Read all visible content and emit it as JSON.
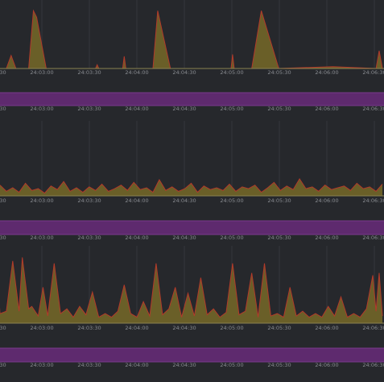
{
  "colors": {
    "background": "#26282c",
    "grid": "#34363b",
    "spike_fill": "#6e6228",
    "spike_stroke": "#b23a2a",
    "band": "#5e2a6e",
    "band_edge": "#7a3a8c",
    "baseline": "#8a8250",
    "tick_text": "#8a8d92"
  },
  "x_ticks": [
    "24:03:00",
    "24:03:30",
    "24:04:00",
    "24:04:30",
    "24:05:00",
    "24:05:30",
    "24:06:00",
    "24:06:30"
  ],
  "chart_data": [
    {
      "type": "area",
      "name": "panel-1-spikes",
      "x": [
        "24:02:38",
        "24:02:44",
        "24:02:47",
        "24:02:50",
        "24:02:58",
        "24:03:01",
        "24:03:03",
        "24:03:09",
        "24:03:40",
        "24:03:41",
        "24:03:42",
        "24:03:57",
        "24:03:58",
        "24:03:59",
        "24:04:16",
        "24:04:19",
        "24:04:27",
        "24:05:05",
        "24:05:06",
        "24:05:07",
        "24:05:18",
        "24:05:24",
        "24:05:35",
        "24:06:09",
        "24:06:36",
        "24:06:38",
        "24:06:40"
      ],
      "y": [
        0,
        0,
        14,
        0,
        0,
        62,
        55,
        0,
        0,
        4,
        0,
        0,
        13,
        0,
        0,
        62,
        0,
        0,
        15,
        0,
        0,
        62,
        0,
        2,
        0,
        19,
        0
      ],
      "xlim": [
        "24:02:38",
        "24:06:40"
      ],
      "ylim": [
        0,
        70
      ]
    },
    {
      "type": "band",
      "name": "panel-2-band",
      "x": [
        "24:02:38",
        "24:06:40"
      ],
      "y": [
        1,
        1
      ],
      "ylim": [
        0,
        1
      ]
    },
    {
      "type": "area",
      "name": "panel-3-noise",
      "x": [
        "24:02:40",
        "24:02:44",
        "24:02:48",
        "24:02:52",
        "24:02:56",
        "24:03:00",
        "24:03:04",
        "24:03:08",
        "24:03:12",
        "24:03:16",
        "24:03:20",
        "24:03:24",
        "24:03:28",
        "24:03:32",
        "24:03:36",
        "24:03:40",
        "24:03:44",
        "24:03:48",
        "24:03:52",
        "24:03:56",
        "24:04:00",
        "24:04:04",
        "24:04:08",
        "24:04:12",
        "24:04:16",
        "24:04:20",
        "24:04:24",
        "24:04:28",
        "24:04:32",
        "24:04:36",
        "24:04:40",
        "24:04:44",
        "24:04:48",
        "24:04:52",
        "24:04:56",
        "24:05:00",
        "24:05:04",
        "24:05:08",
        "24:05:12",
        "24:05:16",
        "24:05:20",
        "24:05:24",
        "24:05:28",
        "24:05:32",
        "24:05:36",
        "24:05:40",
        "24:05:44",
        "24:05:48",
        "24:05:52",
        "24:05:56",
        "24:06:00",
        "24:06:04",
        "24:06:08",
        "24:06:12",
        "24:06:16",
        "24:06:20",
        "24:06:24",
        "24:06:28",
        "24:06:32",
        "24:06:36",
        "24:06:40"
      ],
      "y": [
        12,
        5,
        9,
        4,
        14,
        6,
        8,
        3,
        11,
        7,
        16,
        5,
        9,
        4,
        10,
        6,
        13,
        5,
        8,
        12,
        6,
        15,
        7,
        9,
        4,
        18,
        6,
        10,
        5,
        8,
        14,
        4,
        11,
        7,
        9,
        6,
        13,
        5,
        10,
        8,
        12,
        4,
        9,
        15,
        6,
        11,
        7,
        19,
        8,
        10,
        5,
        12,
        7,
        9,
        11,
        6,
        14,
        8,
        10,
        5,
        13
      ],
      "xlim": [
        "24:02:38",
        "24:06:40"
      ],
      "ylim": [
        0,
        80
      ]
    },
    {
      "type": "band",
      "name": "panel-4-band",
      "x": [
        "24:02:38",
        "24:06:40"
      ],
      "y": [
        1,
        1
      ],
      "ylim": [
        0,
        1
      ]
    },
    {
      "type": "area",
      "name": "panel-5-spikes",
      "x": [
        "24:02:38",
        "24:02:40",
        "24:02:44",
        "24:02:48",
        "24:02:52",
        "24:02:54",
        "24:02:58",
        "24:03:00",
        "24:03:04",
        "24:03:07",
        "24:03:10",
        "24:03:14",
        "24:03:18",
        "24:03:22",
        "24:03:26",
        "24:03:30",
        "24:03:34",
        "24:03:38",
        "24:03:42",
        "24:03:46",
        "24:03:50",
        "24:03:54",
        "24:03:58",
        "24:04:02",
        "24:04:06",
        "24:04:10",
        "24:04:14",
        "24:04:18",
        "24:04:22",
        "24:04:26",
        "24:04:30",
        "24:04:34",
        "24:04:38",
        "24:04:42",
        "24:04:46",
        "24:04:50",
        "24:04:54",
        "24:04:58",
        "24:05:02",
        "24:05:06",
        "24:05:10",
        "24:05:14",
        "24:05:18",
        "24:05:22",
        "24:05:26",
        "24:05:30",
        "24:05:34",
        "24:05:38",
        "24:05:42",
        "24:05:46",
        "24:05:50",
        "24:05:54",
        "24:05:58",
        "24:06:02",
        "24:06:06",
        "24:06:10",
        "24:06:14",
        "24:06:18",
        "24:06:22",
        "24:06:26",
        "24:06:30",
        "24:06:34",
        "24:06:36",
        "24:06:38",
        "24:06:40"
      ],
      "y": [
        48,
        8,
        10,
        52,
        10,
        55,
        12,
        14,
        6,
        30,
        6,
        50,
        8,
        12,
        5,
        14,
        7,
        26,
        5,
        8,
        5,
        10,
        32,
        8,
        5,
        18,
        6,
        50,
        7,
        12,
        30,
        5,
        25,
        6,
        38,
        7,
        12,
        5,
        9,
        50,
        7,
        10,
        42,
        5,
        50,
        6,
        8,
        5,
        30,
        6,
        10,
        5,
        8,
        5,
        14,
        6,
        22,
        5,
        8,
        5,
        12,
        40,
        10,
        42,
        6
      ],
      "xlim": [
        "24:02:38",
        "24:06:40"
      ],
      "ylim": [
        0,
        62
      ]
    },
    {
      "type": "band",
      "name": "panel-6-band",
      "x": [
        "24:02:38",
        "24:06:40"
      ],
      "y": [
        1,
        1
      ],
      "ylim": [
        0,
        1
      ]
    }
  ]
}
